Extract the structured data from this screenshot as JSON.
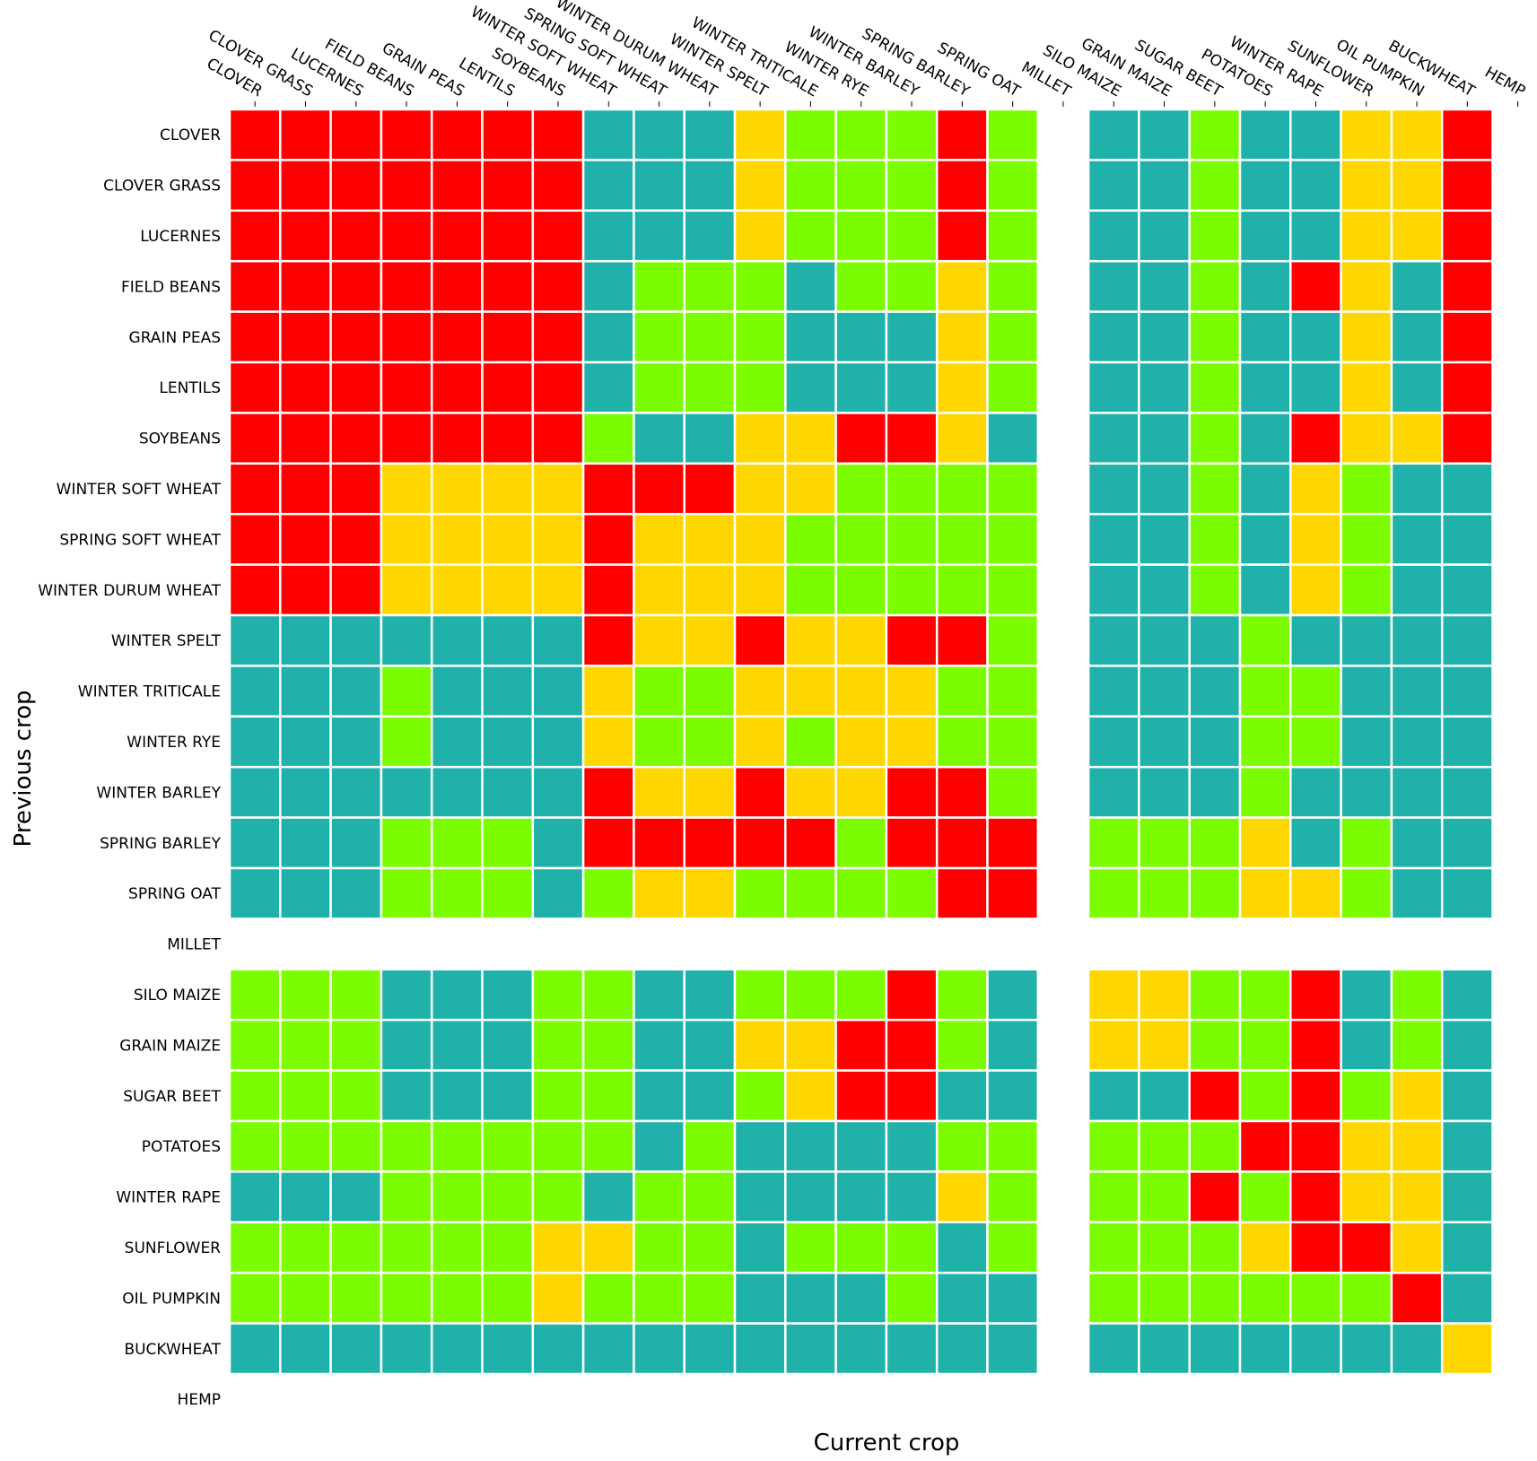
{
  "chart_data": {
    "type": "heatmap",
    "title": "",
    "xlabel": "Current crop",
    "ylabel": "Previous crop",
    "grid": false,
    "legend": "none",
    "categories": [
      "CLOVER",
      "CLOVER GRASS",
      "LUCERNES",
      "FIELD BEANS",
      "GRAIN PEAS",
      "LENTILS",
      "SOYBEANS",
      "WINTER SOFT WHEAT",
      "SPRING SOFT WHEAT",
      "WINTER DURUM WHEAT",
      "WINTER SPELT",
      "WINTER TRITICALE",
      "WINTER RYE",
      "WINTER BARLEY",
      "SPRING BARLEY",
      "SPRING OAT",
      "MILLET",
      "SILO MAIZE",
      "GRAIN MAIZE",
      "SUGAR BEET",
      "POTATOES",
      "WINTER RAPE",
      "SUNFLOWER",
      "OIL PUMPKIN",
      "BUCKWHEAT",
      "HEMP"
    ],
    "x_labels": [
      "CLOVER",
      "CLOVER GRASS",
      "LUCERNES",
      "FIELD BEANS",
      "GRAIN PEAS",
      "LENTILS",
      "SOYBEANS",
      "WINTER SOFT WHEAT",
      "SPRING SOFT WHEAT",
      "WINTER DURUM WHEAT",
      "WINTER SPELT",
      "WINTER TRITICALE",
      "WINTER RYE",
      "WINTER BARLEY",
      "SPRING BARLEY",
      "SPRING OAT",
      "MILLET",
      "SILO MAIZE",
      "GRAIN MAIZE",
      "SUGAR BEET",
      "POTATOES",
      "WINTER RAPE",
      "SUNFLOWER",
      "OIL PUMPKIN",
      "BUCKWHEAT",
      "HEMP"
    ],
    "y_labels": [
      "CLOVER",
      "CLOVER GRASS",
      "LUCERNES",
      "FIELD BEANS",
      "GRAIN PEAS",
      "LENTILS",
      "SOYBEANS",
      "WINTER SOFT WHEAT",
      "SPRING SOFT WHEAT",
      "WINTER DURUM WHEAT",
      "WINTER SPELT",
      "WINTER TRITICALE",
      "WINTER RYE",
      "WINTER BARLEY",
      "SPRING BARLEY",
      "SPRING OAT",
      "MILLET",
      "SILO MAIZE",
      "GRAIN MAIZE",
      "SUGAR BEET",
      "POTATOES",
      "WINTER RAPE",
      "SUNFLOWER",
      "OIL PUMPKIN",
      "BUCKWHEAT",
      "HEMP"
    ],
    "color_map": {
      "R": "#FF0000",
      "Y": "#FFD700",
      "G": "#7CFC00",
      "T": "#20B2AA",
      "-": "none"
    },
    "matrix": [
      "RRRRRRRTTTYGGGRG-TTGTTYYR-",
      "RRRRRRRTTTYGGGRG-TTGTTYYR-",
      "RRRRRRRTTTYGGGRG-TTGTTYYR-",
      "RRRRRRRTGGGTGGYG-TTGTRYTR-",
      "RRRRRRRTGGGTTTYG-TTGTTYTR-",
      "RRRRRRRTGGGTTTYG-TTGTTYTR-",
      "RRRRRRRGTTYYRRYT-TTGTRYYR-",
      "RRRYYYYRRRYYGGGG-TTGTYGTT-",
      "RRRYYYYRYYYGGGGG-TTGTYGTT-",
      "RRRYYYYRYYYGGGGG-TTGTYGTT-",
      "TTTTTTTRYYRYYRRG-TTTGTTTT-",
      "TTTGTTTYGGYYYYGG-TTTGGTTT-",
      "TTTGTTTYGGYGYYGG-TTTGGTTT-",
      "TTTTTTTRYYRYYRRG-TTTGTTTT-",
      "TTTGGGTRRRRRGRRR-GGGYTGTT-",
      "TTTGGGTGYYGGGGRR-GGGYYGTT-",
      "--------------------------",
      "GGGTTTGGTTGGGRGT-YYGGRTGT-",
      "GGGTTTGGTTYYRRGT-YYGGRTGT-",
      "GGGTTTGGTTGYRRTT-TTRGRGYT-",
      "GGGGGGGGTGTTTTGG-GGGRRYYT-",
      "TTTGGGGTGGTTTTYG-GGRGRYYT-",
      "GGGGGGYYGGTGGGTG-GGGYRRYT-",
      "GGGGGGYGGGTTTGTT-GGGGGGRT-",
      "TTTTTTTTTTTTTTTT-TTTTTTTY-",
      "--------------------------"
    ]
  }
}
